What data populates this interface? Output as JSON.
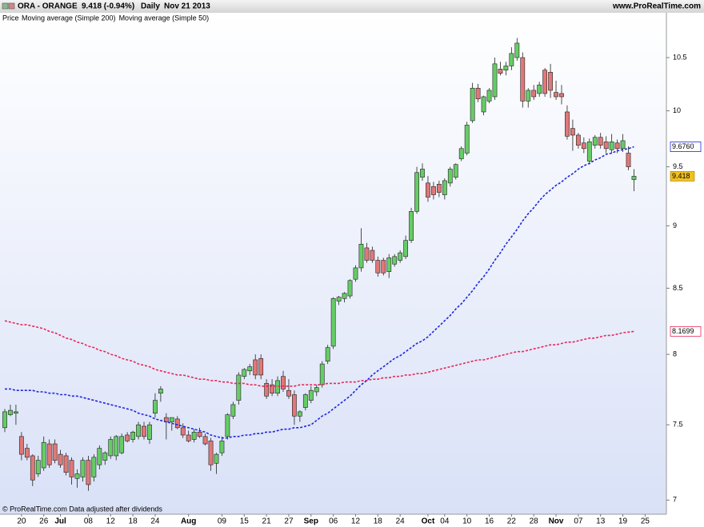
{
  "chart_data": {
    "type": "candlestick",
    "header": {
      "symbol": "ORA - ORANGE",
      "quote": "9.418 (-0.94%)",
      "period": "Daily",
      "date": "Nov 21 2013",
      "site": "www.ProRealTime.com"
    },
    "price_label": "Price",
    "footer": "© ProRealTime.com  Data adjusted after dividends",
    "log_scale": true,
    "grid": false,
    "up_color": "#66cc66",
    "down_color": "#e07878",
    "last_color": "#f0c020",
    "ylim": [
      6.91,
      10.94
    ],
    "yticks": [
      7,
      7.5,
      8,
      8.5,
      9,
      9.5,
      10,
      10.5
    ],
    "categories": [
      null,
      null,
      null,
      "20",
      null,
      null,
      null,
      "26",
      null,
      null,
      "Jul",
      null,
      null,
      null,
      null,
      "08",
      null,
      null,
      null,
      "12",
      null,
      null,
      null,
      "18",
      null,
      null,
      null,
      "24",
      null,
      null,
      null,
      null,
      null,
      "Aug",
      null,
      null,
      null,
      null,
      null,
      "09",
      null,
      null,
      null,
      "15",
      null,
      null,
      null,
      "21",
      null,
      null,
      null,
      "27",
      null,
      null,
      null,
      "Sep",
      null,
      null,
      null,
      "06",
      null,
      null,
      null,
      "12",
      null,
      null,
      null,
      "18",
      null,
      null,
      null,
      "24",
      null,
      null,
      null,
      null,
      "Oct",
      null,
      null,
      "04",
      null,
      null,
      null,
      "10",
      null,
      null,
      null,
      "16",
      null,
      null,
      null,
      "22",
      null,
      null,
      null,
      "28",
      null,
      null,
      null,
      "Nov",
      null,
      null,
      null,
      "07",
      null,
      null,
      null,
      "13",
      null,
      null,
      null,
      "19",
      null,
      null,
      null,
      "25"
    ],
    "open": [
      7.48,
      7.57,
      7.58,
      7.42,
      7.34,
      7.29,
      7.17,
      7.21,
      7.37,
      7.37,
      7.3,
      7.29,
      7.26,
      7.14,
      7.15,
      7.26,
      7.15,
      7.23,
      7.26,
      7.29,
      7.29,
      7.31,
      7.43,
      7.4,
      7.42,
      7.49,
      7.4,
      7.58,
      7.72,
      7.55,
      7.52,
      7.54,
      7.48,
      7.43,
      7.4,
      7.45,
      7.42,
      7.39,
      7.24,
      7.31,
      7.42,
      7.56,
      7.67,
      7.84,
      7.88,
      7.96,
      7.97,
      7.79,
      7.78,
      7.72,
      7.84,
      7.74,
      7.71,
      7.56,
      7.62,
      7.67,
      7.73,
      7.78,
      7.95,
      8.06,
      8.4,
      8.42,
      8.44,
      8.57,
      8.66,
      8.82,
      8.8,
      8.72,
      8.72,
      8.63,
      8.69,
      8.72,
      8.75,
      8.88,
      9.12,
      9.41,
      9.36,
      9.33,
      9.35,
      9.26,
      9.36,
      9.41,
      9.57,
      9.62,
      9.91,
      10.21,
      9.99,
      10.09,
      10.13,
      10.39,
      10.38,
      10.42,
      10.5,
      10.5,
      10.09,
      10.19,
      10.16,
      10.38,
      10.36,
      10.17,
      10.16,
      9.99,
      9.84,
      9.78,
      9.71,
      9.55,
      9.69,
      9.76,
      9.72,
      9.65,
      9.71,
      9.66,
      9.62,
      9.39,
      null,
      null
    ],
    "high": [
      7.61,
      7.64,
      7.64,
      7.45,
      7.37,
      7.3,
      7.29,
      7.42,
      7.4,
      7.4,
      7.33,
      7.31,
      7.28,
      7.2,
      7.28,
      7.29,
      7.3,
      7.36,
      7.32,
      7.42,
      7.43,
      7.44,
      7.45,
      7.46,
      7.52,
      7.52,
      7.52,
      7.72,
      7.77,
      7.58,
      7.55,
      7.56,
      7.51,
      7.46,
      7.47,
      7.48,
      7.44,
      7.41,
      7.31,
      7.42,
      7.58,
      7.66,
      7.87,
      7.9,
      7.93,
      8.0,
      8.0,
      7.82,
      7.82,
      7.84,
      7.88,
      7.82,
      7.74,
      7.6,
      7.72,
      7.77,
      7.78,
      7.95,
      8.07,
      8.43,
      8.44,
      8.47,
      8.57,
      8.68,
      8.98,
      8.86,
      8.83,
      8.75,
      8.74,
      8.77,
      8.77,
      8.8,
      8.92,
      9.15,
      9.5,
      9.53,
      9.42,
      9.37,
      9.38,
      9.4,
      9.5,
      9.53,
      9.68,
      9.9,
      10.26,
      10.25,
      10.14,
      10.21,
      10.5,
      10.46,
      10.46,
      10.6,
      10.69,
      10.55,
      10.21,
      10.24,
      10.27,
      10.4,
      10.44,
      10.28,
      10.24,
      10.05,
      9.92,
      9.8,
      9.76,
      9.75,
      9.78,
      9.8,
      9.77,
      9.79,
      9.74,
      9.79,
      9.68,
      9.48,
      null,
      null
    ],
    "low": [
      7.45,
      7.56,
      7.5,
      7.26,
      7.26,
      7.09,
      7.15,
      7.19,
      7.21,
      7.24,
      7.21,
      7.16,
      7.1,
      7.08,
      7.12,
      7.06,
      7.12,
      7.2,
      7.23,
      7.27,
      7.26,
      7.3,
      7.38,
      7.38,
      7.4,
      7.4,
      7.37,
      7.55,
      7.66,
      7.4,
      7.46,
      7.47,
      7.41,
      7.38,
      7.38,
      7.41,
      7.36,
      7.19,
      7.17,
      7.29,
      7.4,
      7.54,
      7.64,
      7.82,
      7.85,
      7.82,
      7.82,
      7.68,
      7.7,
      7.7,
      7.73,
      7.68,
      7.5,
      7.52,
      7.6,
      7.65,
      7.7,
      7.76,
      7.93,
      8.04,
      8.37,
      8.39,
      8.42,
      8.55,
      8.63,
      8.7,
      8.7,
      8.59,
      8.6,
      8.58,
      8.67,
      8.7,
      8.73,
      8.86,
      9.1,
      9.38,
      9.2,
      9.22,
      9.24,
      9.22,
      9.33,
      9.39,
      9.55,
      9.6,
      9.89,
      10.08,
      9.96,
      10.07,
      10.1,
      10.33,
      10.33,
      10.38,
      10.47,
      10.03,
      10.03,
      10.1,
      10.13,
      10.13,
      10.12,
      10.1,
      10.06,
      9.74,
      9.64,
      9.66,
      9.62,
      9.52,
      9.66,
      9.66,
      9.62,
      9.62,
      9.62,
      9.63,
      9.47,
      9.29,
      null,
      null
    ],
    "close": [
      7.59,
      7.6,
      7.59,
      7.3,
      7.28,
      7.13,
      7.26,
      7.38,
      7.23,
      7.26,
      7.23,
      7.18,
      7.15,
      7.17,
      7.26,
      7.1,
      7.28,
      7.34,
      7.31,
      7.4,
      7.42,
      7.42,
      7.39,
      7.45,
      7.5,
      7.42,
      7.5,
      7.67,
      7.75,
      7.52,
      7.55,
      7.48,
      7.43,
      7.39,
      7.45,
      7.42,
      7.37,
      7.23,
      7.3,
      7.39,
      7.57,
      7.64,
      7.85,
      7.89,
      7.91,
      7.85,
      7.85,
      7.7,
      7.72,
      7.81,
      7.75,
      7.7,
      7.56,
      7.59,
      7.71,
      7.74,
      7.76,
      7.93,
      8.05,
      8.42,
      8.43,
      8.46,
      8.56,
      8.66,
      8.85,
      8.72,
      8.72,
      8.62,
      8.62,
      8.74,
      8.75,
      8.78,
      8.88,
      9.12,
      9.45,
      9.48,
      9.24,
      9.26,
      9.28,
      9.38,
      9.48,
      9.52,
      9.66,
      9.87,
      10.21,
      10.11,
      10.13,
      10.19,
      10.44,
      10.35,
      10.42,
      10.54,
      10.64,
      10.09,
      10.19,
      10.13,
      10.24,
      10.16,
      10.19,
      10.13,
      10.13,
      9.77,
      9.78,
      9.69,
      9.66,
      9.72,
      9.76,
      9.69,
      9.66,
      9.72,
      9.66,
      9.73,
      9.5,
      9.418,
      null,
      null
    ],
    "series": [
      {
        "name": "Moving average (Simple 200)",
        "color": "#e8285a",
        "values": [
          8.25,
          8.24,
          8.23,
          8.22,
          8.22,
          8.21,
          8.2,
          8.19,
          8.17,
          8.16,
          8.14,
          8.12,
          8.11,
          8.09,
          8.08,
          8.06,
          8.05,
          8.03,
          8.02,
          8.0,
          7.99,
          7.97,
          7.96,
          7.95,
          7.93,
          7.92,
          7.91,
          7.89,
          7.88,
          7.87,
          7.86,
          7.85,
          7.85,
          7.84,
          7.83,
          7.82,
          7.82,
          7.81,
          7.81,
          7.8,
          7.8,
          7.79,
          7.79,
          7.79,
          7.78,
          7.78,
          7.77,
          7.77,
          7.77,
          7.77,
          7.77,
          7.77,
          7.77,
          7.78,
          7.78,
          7.78,
          7.78,
          7.78,
          7.79,
          7.79,
          7.79,
          7.8,
          7.8,
          7.8,
          7.81,
          7.81,
          7.82,
          7.82,
          7.83,
          7.83,
          7.84,
          7.84,
          7.85,
          7.85,
          7.86,
          7.86,
          7.87,
          7.88,
          7.89,
          7.9,
          7.91,
          7.92,
          7.93,
          7.94,
          7.95,
          7.96,
          7.96,
          7.97,
          7.98,
          7.99,
          8.0,
          8.01,
          8.02,
          8.02,
          8.03,
          8.04,
          8.05,
          8.06,
          8.07,
          8.07,
          8.08,
          8.09,
          8.09,
          8.1,
          8.11,
          8.12,
          8.12,
          8.13,
          8.14,
          8.14,
          8.15,
          8.16,
          8.165,
          8.1699,
          null,
          null
        ],
        "value_labels": [
          null,
          null,
          null,
          null,
          null,
          null,
          null,
          null,
          null,
          null,
          null,
          null,
          null,
          null,
          null,
          null,
          null,
          null,
          null,
          null,
          null,
          null,
          null,
          null,
          null,
          null,
          null,
          null,
          null,
          null,
          null,
          null,
          null,
          null,
          null,
          null,
          null,
          null,
          null,
          null,
          null,
          null,
          null,
          null,
          null,
          null,
          null,
          null,
          null,
          null,
          null,
          null,
          null,
          null,
          null,
          null,
          null,
          null,
          null,
          null,
          null,
          null,
          null,
          null,
          null,
          null,
          null,
          null,
          null,
          null,
          null,
          null,
          null,
          null,
          null,
          null,
          null,
          null,
          null,
          null,
          null,
          null,
          null,
          null,
          null,
          null,
          null,
          null,
          null,
          null,
          null,
          null,
          null,
          null,
          null,
          null,
          null,
          null,
          null,
          null,
          null,
          null,
          null,
          null,
          null,
          null,
          null,
          null,
          null,
          null,
          null,
          null,
          null,
          "8.1699",
          null,
          null
        ]
      },
      {
        "name": "Moving average (Simple 50)",
        "color": "#1e28e0",
        "values": [
          7.75,
          7.75,
          7.74,
          7.74,
          7.74,
          7.74,
          7.73,
          7.73,
          7.72,
          7.72,
          7.71,
          7.71,
          7.7,
          7.7,
          7.69,
          7.68,
          7.67,
          7.66,
          7.65,
          7.64,
          7.63,
          7.62,
          7.61,
          7.6,
          7.58,
          7.57,
          7.56,
          7.54,
          7.53,
          7.52,
          7.51,
          7.5,
          7.49,
          7.48,
          7.47,
          7.46,
          7.45,
          7.43,
          7.42,
          7.41,
          7.41,
          7.42,
          7.42,
          7.43,
          7.43,
          7.44,
          7.44,
          7.45,
          7.45,
          7.46,
          7.47,
          7.47,
          7.48,
          7.48,
          7.49,
          7.5,
          7.53,
          7.56,
          7.58,
          7.61,
          7.64,
          7.67,
          7.7,
          7.74,
          7.78,
          7.81,
          7.85,
          7.88,
          7.91,
          7.94,
          7.97,
          7.99,
          8.02,
          8.05,
          8.08,
          8.1,
          8.13,
          8.17,
          8.21,
          8.25,
          8.29,
          8.34,
          8.38,
          8.43,
          8.48,
          8.54,
          8.59,
          8.65,
          8.72,
          8.78,
          8.85,
          8.91,
          8.97,
          9.04,
          9.1,
          9.15,
          9.21,
          9.26,
          9.3,
          9.34,
          9.37,
          9.41,
          9.44,
          9.48,
          9.51,
          9.53,
          9.56,
          9.58,
          9.61,
          9.62,
          9.64,
          9.65,
          9.66,
          9.676,
          null,
          null
        ],
        "value_labels": [
          null,
          null,
          null,
          null,
          null,
          null,
          null,
          null,
          null,
          null,
          null,
          null,
          null,
          null,
          null,
          null,
          null,
          null,
          null,
          null,
          null,
          null,
          null,
          null,
          null,
          null,
          null,
          null,
          null,
          null,
          null,
          null,
          null,
          null,
          null,
          null,
          null,
          null,
          null,
          null,
          null,
          null,
          null,
          null,
          null,
          null,
          null,
          null,
          null,
          null,
          null,
          null,
          null,
          null,
          null,
          null,
          null,
          null,
          null,
          null,
          null,
          null,
          null,
          null,
          null,
          null,
          null,
          null,
          null,
          null,
          null,
          null,
          null,
          null,
          null,
          null,
          null,
          null,
          null,
          null,
          null,
          null,
          null,
          null,
          null,
          null,
          null,
          null,
          null,
          null,
          null,
          null,
          null,
          null,
          null,
          null,
          null,
          null,
          null,
          null,
          null,
          null,
          null,
          null,
          null,
          null,
          null,
          null,
          null,
          null,
          null,
          null,
          null,
          "9.6760",
          null,
          null
        ]
      }
    ]
  }
}
